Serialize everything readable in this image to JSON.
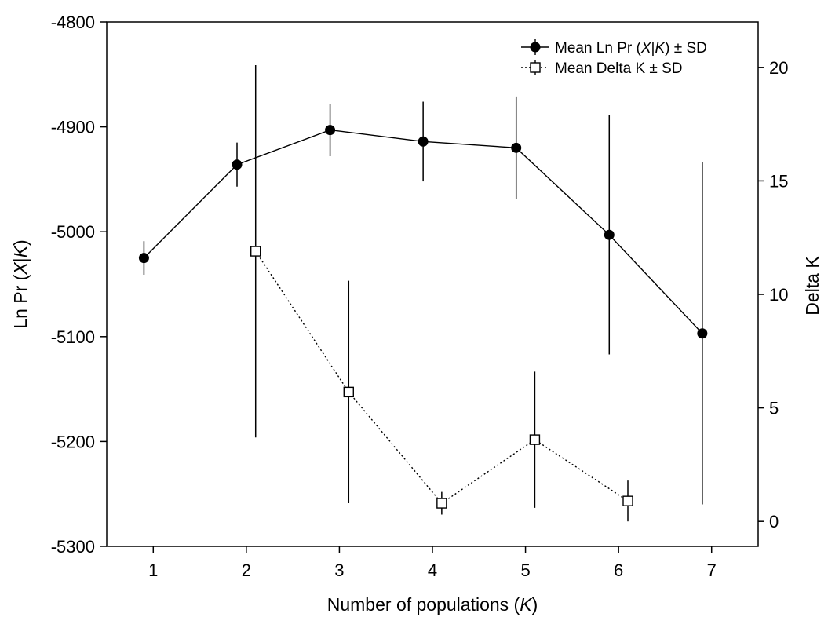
{
  "chart_data": {
    "type": "line",
    "xlabel": "Number of populations (K)",
    "ylabel_left": "Ln Pr (X|K)",
    "ylabel_right": "Delta K",
    "x_ticks": [
      "1",
      "2",
      "3",
      "4",
      "5",
      "6",
      "7"
    ],
    "y_left_ticks": [
      "-4800",
      "-4900",
      "-5000",
      "-5100",
      "-5200",
      "-5300"
    ],
    "y_right_ticks": [
      "0",
      "5",
      "10",
      "15",
      "20"
    ],
    "xlim": [
      0.5,
      7.5
    ],
    "ylim_left": [
      -5300,
      -4800
    ],
    "ylim_right": [
      -1.1,
      22
    ],
    "legend_position": "top-right",
    "series": [
      {
        "name": "Mean Ln Pr (X|K) ± SD",
        "axis": "left",
        "marker": "filled-circle",
        "line": "solid",
        "x": [
          0.9,
          1.9,
          2.9,
          3.9,
          4.9,
          5.9,
          6.9
        ],
        "y": [
          -5025,
          -4936,
          -4903,
          -4914,
          -4920,
          -5003,
          -5097
        ],
        "sd": [
          16,
          21,
          25,
          38,
          49,
          114,
          163
        ]
      },
      {
        "name": "Mean Delta K  ± SD",
        "axis": "right",
        "marker": "open-square",
        "line": "dotted",
        "x": [
          2.1,
          3.1,
          4.1,
          5.1,
          6.1
        ],
        "y": [
          11.9,
          5.7,
          0.8,
          3.6,
          0.9
        ],
        "sd": [
          8.2,
          4.9,
          0.5,
          3.0,
          0.9
        ]
      }
    ]
  }
}
